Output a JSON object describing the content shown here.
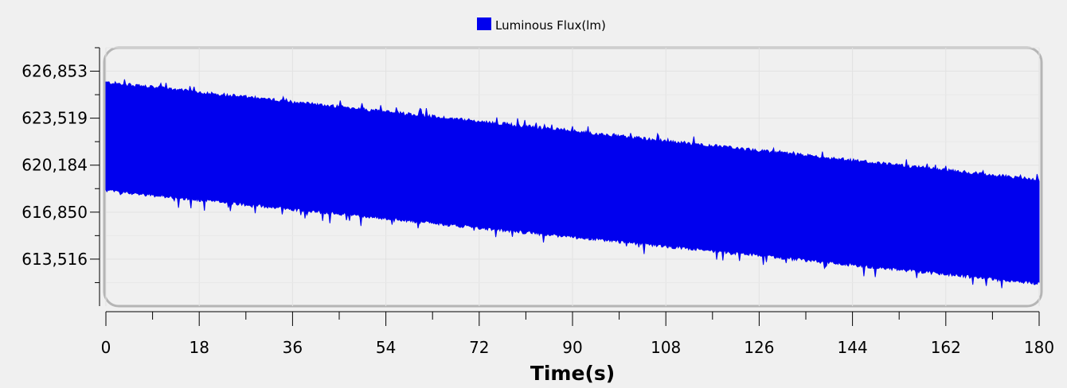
{
  "chart_data": {
    "type": "area",
    "title": "",
    "xlabel": "Time(s)",
    "ylabel": "",
    "x_ticks": [
      "0",
      "18",
      "36",
      "54",
      "72",
      "90",
      "108",
      "126",
      "144",
      "162",
      "180"
    ],
    "y_ticks": [
      "626,853",
      "623,519",
      "620,184",
      "616,850",
      "613,516"
    ],
    "xlim": [
      0,
      180
    ],
    "ylim": [
      610182,
      628520
    ],
    "grid": true,
    "legend": "top-center",
    "series": [
      {
        "name": "Luminous Flux(lm)",
        "color": "#0000ee",
        "band_upper": [
          [
            0,
            626050
          ],
          [
            180,
            619130
          ]
        ],
        "band_lower": [
          [
            0,
            618390
          ],
          [
            180,
            611800
          ]
        ]
      }
    ]
  }
}
